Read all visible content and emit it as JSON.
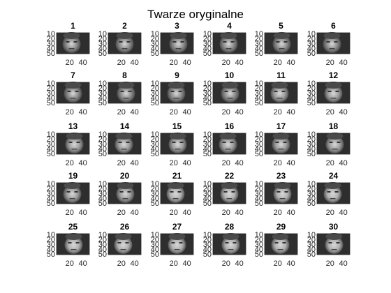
{
  "figure": {
    "suptitle": "Twarze oryginalne"
  },
  "chart_data": {
    "type": "image-grid",
    "title": "Twarze oryginalne",
    "rows": 5,
    "cols": 6,
    "panel_titles": [
      "1",
      "2",
      "3",
      "4",
      "5",
      "6",
      "7",
      "8",
      "9",
      "10",
      "11",
      "12",
      "13",
      "14",
      "15",
      "16",
      "17",
      "18",
      "19",
      "20",
      "21",
      "22",
      "23",
      "24",
      "25",
      "26",
      "27",
      "28",
      "29",
      "30"
    ],
    "y_ticks": [
      "10",
      "20",
      "30",
      "40",
      "50"
    ],
    "x_ticks": [
      "20",
      "40"
    ],
    "colormap": "gray",
    "face_groups": [
      {
        "panels": [
          "1",
          "2",
          "3",
          "4",
          "5",
          "6",
          "7",
          "8",
          "9",
          "10"
        ],
        "description_tone": "#8a8a8a"
      },
      {
        "panels": [
          "11",
          "12",
          "13",
          "14",
          "15",
          "16",
          "17",
          "18",
          "19",
          "20"
        ],
        "description_tone": "#9c9c9c"
      },
      {
        "panels": [
          "21",
          "22",
          "23",
          "24",
          "25",
          "26",
          "27",
          "28",
          "29",
          "30"
        ],
        "description_tone": "#b0b0b0"
      }
    ]
  }
}
